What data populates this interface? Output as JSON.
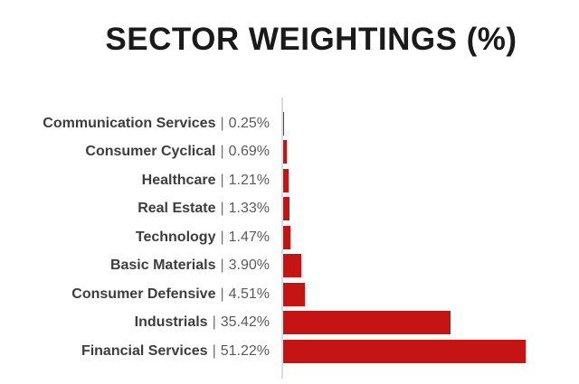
{
  "title": "SECTOR WEIGHTINGS (%)",
  "chart_data": {
    "type": "bar",
    "orientation": "horizontal",
    "title": "SECTOR WEIGHTINGS (%)",
    "categories": [
      "Communication Services",
      "Consumer Cyclical",
      "Healthcare",
      "Real Estate",
      "Technology",
      "Basic Materials",
      "Consumer Defensive",
      "Industrials",
      "Financial Services"
    ],
    "values": [
      0.25,
      0.69,
      1.21,
      1.33,
      1.47,
      3.9,
      4.51,
      35.42,
      51.22
    ],
    "value_labels": [
      "0.25%",
      "0.69%",
      "1.21%",
      "1.33%",
      "1.47%",
      "3.90%",
      "4.51%",
      "35.42%",
      "51.22%"
    ],
    "separator": "|",
    "xlim": [
      0,
      52
    ],
    "grid": false,
    "legend": false,
    "colors": {
      "bar": "#C41414",
      "axis": "#DCDCDC",
      "category_text": "#3D3D3D",
      "value_text": "#5A5A5A",
      "separator_text": "#6F6F6F",
      "title_text": "#1A1A1A",
      "background": "#FFFFFF"
    }
  }
}
